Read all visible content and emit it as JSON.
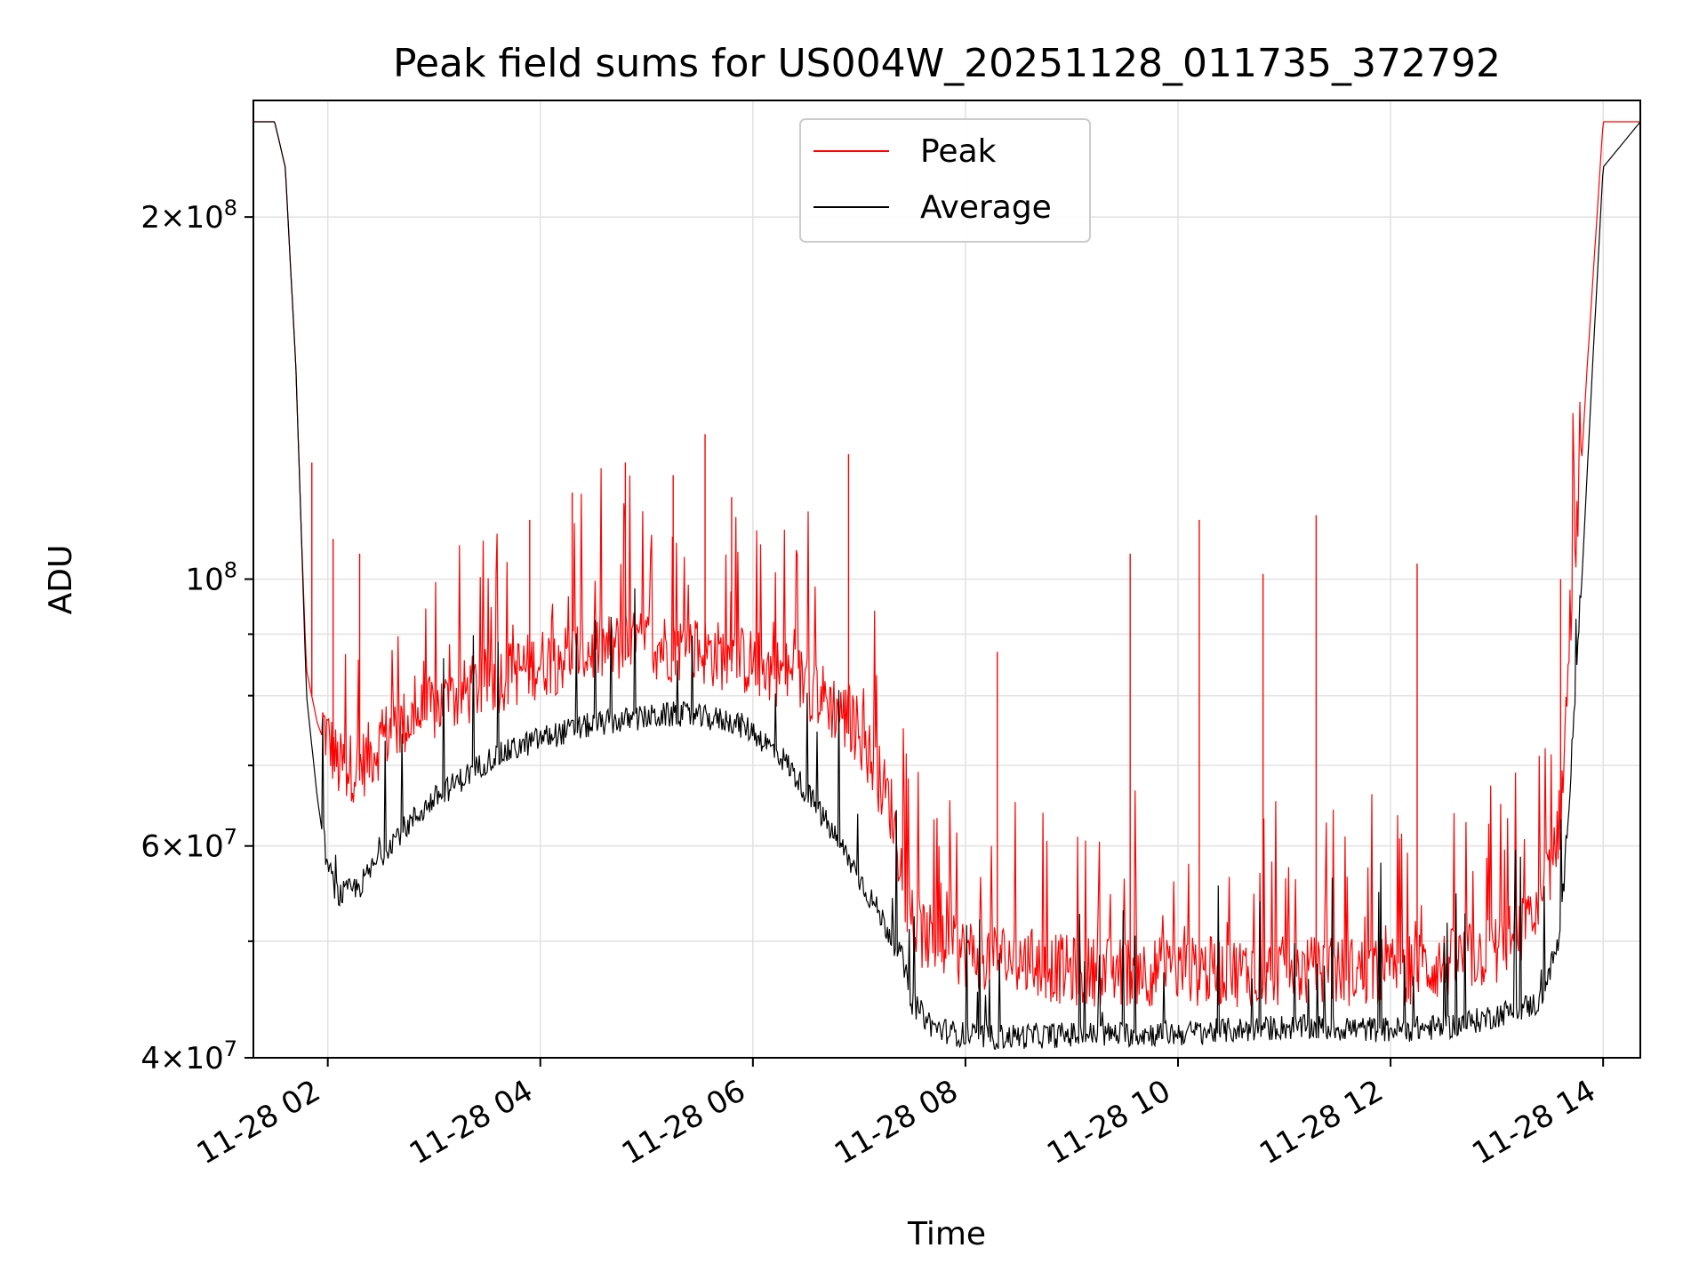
{
  "chart_data": {
    "type": "line",
    "title": "Peak field sums for US004W_20251128_011735_372792",
    "xlabel": "Time",
    "ylabel": "ADU",
    "yscale": "log",
    "xlim_hours": [
      1.3,
      14.35
    ],
    "ylim": [
      40000000,
      250000000
    ],
    "grid": true,
    "legend_position": "upper center",
    "x_ticks": [
      {
        "value": 2,
        "label": "11-28 02"
      },
      {
        "value": 4,
        "label": "11-28 04"
      },
      {
        "value": 6,
        "label": "11-28 06"
      },
      {
        "value": 8,
        "label": "11-28 08"
      },
      {
        "value": 10,
        "label": "11-28 10"
      },
      {
        "value": 12,
        "label": "11-28 12"
      },
      {
        "value": 14,
        "label": "11-28 14"
      }
    ],
    "y_major_ticks": [
      {
        "value": 40000000,
        "mantissa": "4",
        "exponent": "7"
      },
      {
        "value": 60000000,
        "mantissa": "6",
        "exponent": "7"
      },
      {
        "value": 100000000,
        "mantissa": "",
        "exponent": "8"
      },
      {
        "value": 200000000,
        "mantissa": "2",
        "exponent": "8"
      }
    ],
    "y_minor_grid": [
      50000000,
      70000000,
      80000000,
      90000000
    ],
    "y_tick_times": "×",
    "y_tick_base": "10",
    "series": [
      {
        "name": "Peak",
        "color": "#ff0000",
        "x_hours": [
          1.3,
          1.5,
          1.6,
          1.7,
          1.75,
          1.8,
          1.9,
          2.1,
          2.3,
          2.6,
          3.0,
          3.5,
          4.0,
          4.5,
          5.0,
          5.5,
          6.0,
          6.5,
          7.0,
          7.3,
          7.5,
          7.8,
          8.5,
          9.0,
          10.0,
          11.0,
          12.0,
          12.5,
          13.0,
          13.4,
          13.6,
          13.7,
          13.85,
          14.0,
          14.35
        ],
        "values": [
          240000000,
          240000000,
          220000000,
          150000000,
          110000000,
          84000000,
          76000000,
          68000000,
          68000000,
          73000000,
          76000000,
          80000000,
          83000000,
          85000000,
          86000000,
          85000000,
          83000000,
          80000000,
          73000000,
          63000000,
          50000000,
          48000000,
          47000000,
          46000000,
          46000000,
          46000000,
          46000000,
          46500000,
          48000000,
          51000000,
          62000000,
          90000000,
          150000000,
          240000000,
          240000000
        ],
        "spikes": [
          {
            "x": 1.85,
            "value": 125000000
          },
          {
            "x": 2.05,
            "value": 108000000
          },
          {
            "x": 2.3,
            "value": 105000000
          },
          {
            "x": 3.9,
            "value": 112000000
          },
          {
            "x": 4.3,
            "value": 118000000
          },
          {
            "x": 4.8,
            "value": 125000000
          },
          {
            "x": 5.25,
            "value": 122000000
          },
          {
            "x": 5.55,
            "value": 132000000
          },
          {
            "x": 5.8,
            "value": 117000000
          },
          {
            "x": 6.9,
            "value": 127000000
          },
          {
            "x": 8.3,
            "value": 87000000
          },
          {
            "x": 9.55,
            "value": 105000000
          },
          {
            "x": 10.2,
            "value": 112000000
          },
          {
            "x": 10.8,
            "value": 101000000
          },
          {
            "x": 11.3,
            "value": 113000000
          },
          {
            "x": 12.25,
            "value": 103000000
          },
          {
            "x": 13.6,
            "value": 100000000
          }
        ]
      },
      {
        "name": "Average",
        "color": "#000000",
        "x_hours": [
          1.3,
          1.5,
          1.6,
          1.7,
          1.75,
          1.8,
          1.9,
          2.0,
          2.1,
          2.3,
          2.6,
          3.0,
          3.5,
          4.0,
          4.5,
          5.0,
          5.3,
          5.5,
          5.8,
          6.0,
          6.3,
          6.6,
          6.9,
          7.2,
          7.4,
          7.5,
          7.7,
          7.9,
          8.2,
          9.0,
          10.0,
          11.0,
          12.0,
          12.5,
          12.8,
          13.0,
          13.4,
          13.6,
          13.7,
          13.8,
          13.9,
          14.0,
          14.35
        ],
        "values": [
          240000000,
          240000000,
          220000000,
          150000000,
          110000000,
          80000000,
          66000000,
          57000000,
          54000000,
          55000000,
          60000000,
          65000000,
          70000000,
          73000000,
          75000000,
          76000000,
          76500000,
          76000000,
          75500000,
          74000000,
          70000000,
          64000000,
          58000000,
          52000000,
          48000000,
          44000000,
          42000000,
          41500000,
          41200000,
          41400000,
          41500000,
          42000000,
          41800000,
          42000000,
          42500000,
          43000000,
          44000000,
          50000000,
          70000000,
          100000000,
          150000000,
          220000000,
          240000000
        ]
      }
    ]
  }
}
